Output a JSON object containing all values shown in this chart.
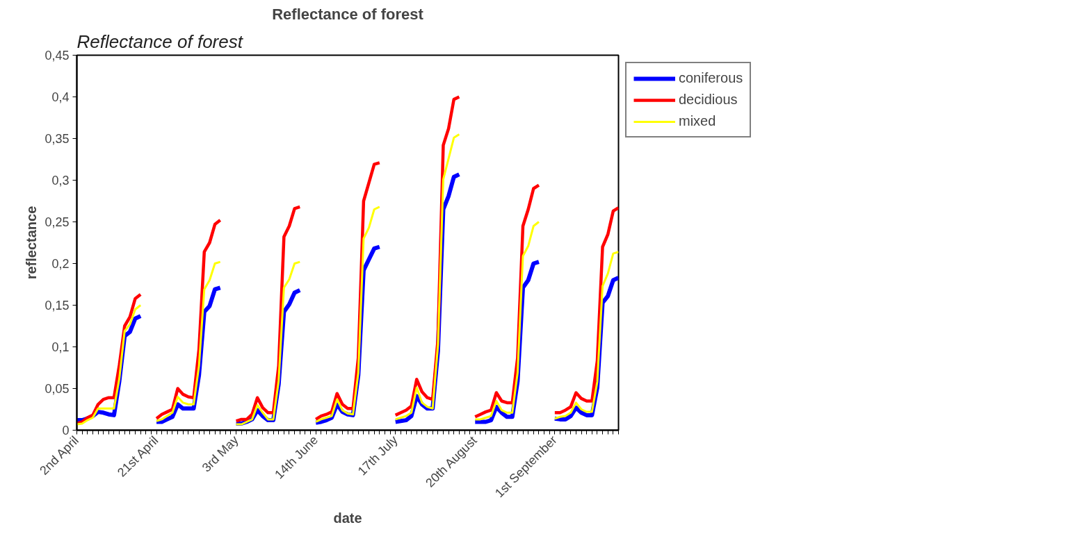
{
  "chart_data": {
    "type": "line",
    "title": "Reflectance of forest",
    "xlabel": "date",
    "ylabel": "reflectance",
    "annotations": [
      "Reflectance of forest"
    ],
    "categories": [
      "2nd April",
      null,
      null,
      null,
      null,
      null,
      null,
      null,
      null,
      null,
      null,
      null,
      null,
      null,
      null,
      "21st April",
      null,
      null,
      null,
      null,
      null,
      null,
      null,
      null,
      null,
      null,
      null,
      null,
      null,
      null,
      "3rd May",
      null,
      null,
      null,
      null,
      null,
      null,
      null,
      null,
      null,
      null,
      null,
      null,
      null,
      null,
      "14th June",
      null,
      null,
      null,
      null,
      null,
      null,
      null,
      null,
      null,
      null,
      null,
      null,
      null,
      null,
      "17th July",
      null,
      null,
      null,
      null,
      null,
      null,
      null,
      null,
      null,
      null,
      null,
      null,
      null,
      null,
      "20th August",
      null,
      null,
      null,
      null,
      null,
      null,
      null,
      null,
      null,
      null,
      null,
      null,
      null,
      null,
      "1st September",
      null,
      null,
      null,
      null,
      null,
      null,
      null,
      null,
      null,
      null,
      null,
      null
    ],
    "series": [
      {
        "name": "coniferous",
        "color": "#0000ff",
        "values": [
          0.012,
          0.012,
          0.014,
          0.017,
          0.022,
          0.021,
          0.019,
          0.018,
          0.059,
          0.113,
          0.118,
          0.134,
          0.137,
          null,
          null,
          0.01,
          0.01,
          0.013,
          0.016,
          0.031,
          0.026,
          0.026,
          0.026,
          0.066,
          0.142,
          0.149,
          0.169,
          0.171,
          null,
          null,
          0.008,
          0.008,
          0.01,
          0.013,
          0.024,
          0.017,
          0.012,
          0.012,
          0.055,
          0.142,
          0.151,
          0.165,
          0.168,
          null,
          null,
          0.009,
          0.01,
          0.012,
          0.015,
          0.031,
          0.022,
          0.019,
          0.018,
          0.066,
          0.192,
          0.205,
          0.218,
          0.22,
          null,
          null,
          0.01,
          0.011,
          0.012,
          0.017,
          0.041,
          0.031,
          0.026,
          0.026,
          0.095,
          0.265,
          0.281,
          0.304,
          0.307,
          null,
          null,
          0.01,
          0.01,
          0.01,
          0.012,
          0.028,
          0.021,
          0.016,
          0.016,
          0.059,
          0.171,
          0.18,
          0.2,
          0.202,
          null,
          null,
          0.014,
          0.013,
          0.013,
          0.017,
          0.027,
          0.021,
          0.018,
          0.018,
          0.051,
          0.153,
          0.161,
          0.18,
          0.183
        ]
      },
      {
        "name": "decidious",
        "color": "#ff0000",
        "values": [
          0.008,
          0.01,
          0.015,
          0.018,
          0.031,
          0.037,
          0.039,
          0.039,
          0.078,
          0.125,
          0.136,
          0.158,
          0.163,
          null,
          null,
          0.014,
          0.019,
          0.022,
          0.025,
          0.05,
          0.043,
          0.04,
          0.039,
          0.097,
          0.214,
          0.225,
          0.247,
          0.252,
          null,
          null,
          0.011,
          0.013,
          0.013,
          0.019,
          0.039,
          0.027,
          0.021,
          0.021,
          0.077,
          0.232,
          0.245,
          0.266,
          0.268,
          null,
          null,
          0.013,
          0.017,
          0.019,
          0.022,
          0.044,
          0.031,
          0.026,
          0.026,
          0.087,
          0.275,
          0.297,
          0.319,
          0.321,
          null,
          null,
          0.018,
          0.021,
          0.024,
          0.029,
          0.061,
          0.046,
          0.039,
          0.037,
          0.109,
          0.342,
          0.362,
          0.397,
          0.4,
          null,
          null,
          0.016,
          0.019,
          0.022,
          0.024,
          0.045,
          0.035,
          0.033,
          0.033,
          0.087,
          0.245,
          0.265,
          0.29,
          0.294,
          null,
          null,
          0.021,
          0.021,
          0.024,
          0.028,
          0.045,
          0.038,
          0.035,
          0.035,
          0.083,
          0.22,
          0.235,
          0.263,
          0.267
        ]
      },
      {
        "name": "mixed",
        "color": "#ffff00",
        "values": [
          0.007,
          0.008,
          0.012,
          0.015,
          0.026,
          0.026,
          0.026,
          0.026,
          0.062,
          0.119,
          0.127,
          0.145,
          0.15,
          null,
          null,
          0.011,
          0.013,
          0.017,
          0.021,
          0.04,
          0.033,
          0.031,
          0.031,
          0.077,
          0.169,
          0.18,
          0.2,
          0.202,
          null,
          null,
          0.007,
          0.007,
          0.01,
          0.013,
          0.03,
          0.021,
          0.013,
          0.013,
          0.059,
          0.171,
          0.181,
          0.2,
          0.202,
          null,
          null,
          0.01,
          0.013,
          0.015,
          0.017,
          0.037,
          0.024,
          0.02,
          0.019,
          0.069,
          0.23,
          0.243,
          0.265,
          0.268,
          null,
          null,
          0.013,
          0.015,
          0.017,
          0.021,
          0.051,
          0.033,
          0.028,
          0.026,
          0.102,
          0.301,
          0.326,
          0.351,
          0.355,
          null,
          null,
          0.013,
          0.013,
          0.015,
          0.017,
          0.035,
          0.024,
          0.021,
          0.021,
          0.069,
          0.209,
          0.221,
          0.245,
          0.25,
          null,
          null,
          0.014,
          0.016,
          0.017,
          0.021,
          0.033,
          0.025,
          0.022,
          0.022,
          0.058,
          0.173,
          0.188,
          0.212,
          0.214
        ]
      }
    ],
    "ylim": [
      0,
      0.45
    ],
    "yticks": [
      0,
      {
        "value": 0.05,
        "label": "0,05"
      },
      {
        "value": 0.1,
        "label": "0,1"
      },
      {
        "value": 0.15,
        "label": "0,15"
      },
      {
        "value": 0.2,
        "label": "0,2"
      },
      {
        "value": 0.25,
        "label": "0,25"
      },
      {
        "value": 0.3,
        "label": "0,3"
      },
      {
        "value": 0.35,
        "label": "0,35"
      },
      {
        "value": 0.4,
        "label": "0,4"
      },
      {
        "value": 0.45,
        "label": "0,45"
      }
    ],
    "grid": false,
    "legend": "right",
    "marker": "none",
    "line_style": "solid"
  }
}
